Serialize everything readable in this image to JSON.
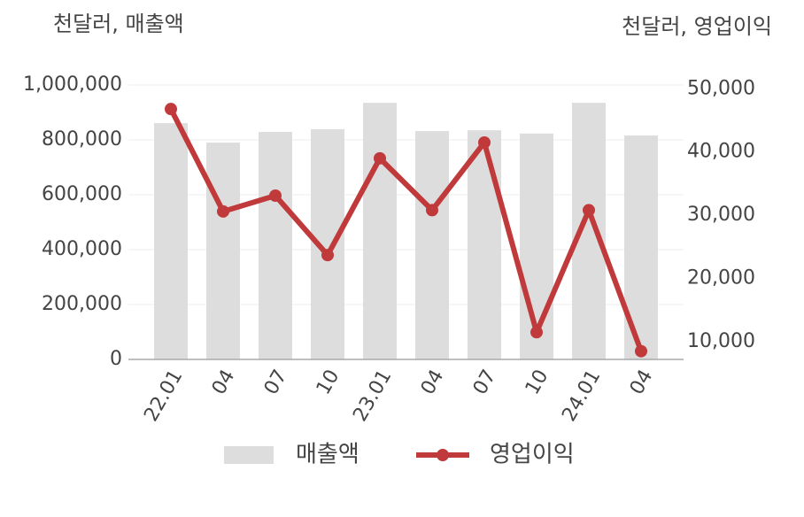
{
  "chart_data": {
    "type": "bar-line",
    "y_label": "천달러, 매출액",
    "y2_label": "천달러, 영업이익",
    "categories": [
      "22.01",
      "04",
      "07",
      "10",
      "23.01",
      "04",
      "07",
      "10",
      "24.01",
      "04"
    ],
    "series": [
      {
        "name": "매출액",
        "type": "bar",
        "color": "#dddddd",
        "values": [
          861000,
          790000,
          829000,
          839000,
          935000,
          832000,
          835000,
          823000,
          935000,
          816000
        ]
      },
      {
        "name": "영업이익",
        "type": "line",
        "axis": "y2",
        "color": "#c0393b",
        "values": [
          46800,
          30600,
          33100,
          23700,
          39000,
          30800,
          41500,
          11500,
          30800,
          8500
        ]
      }
    ],
    "ylim": [
      0,
      1000000
    ],
    "yticks": [
      {
        "value": 0,
        "label": "0"
      },
      {
        "value": 200000,
        "label": "200,000"
      },
      {
        "value": 400000,
        "label": "400,000"
      },
      {
        "value": 600000,
        "label": "600,000"
      },
      {
        "value": 800000,
        "label": "800,000"
      },
      {
        "value": 1000000,
        "label": "1,000,000"
      }
    ],
    "y2lim": [
      7200,
      50600
    ],
    "y2ticks": [
      {
        "value": 10000,
        "label": "10,000"
      },
      {
        "value": 20000,
        "label": "20,000"
      },
      {
        "value": 30000,
        "label": "30,000"
      },
      {
        "value": 40000,
        "label": "40,000"
      },
      {
        "value": 50000,
        "label": "50,000"
      }
    ],
    "grid": true
  }
}
